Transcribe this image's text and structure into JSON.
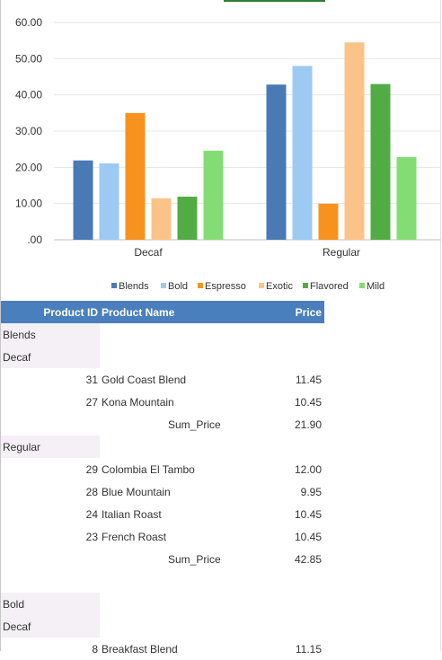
{
  "chart_data": {
    "type": "bar",
    "categories": [
      "Decaf",
      "Regular"
    ],
    "series": [
      {
        "name": "Blends",
        "color": "#4a7ab5",
        "values": [
          21.9,
          42.85
        ]
      },
      {
        "name": "Bold",
        "color": "#9ccaf2",
        "values": [
          21.1,
          48.0
        ]
      },
      {
        "name": "Espresso",
        "color": "#f7921e",
        "values": [
          35.0,
          9.95
        ]
      },
      {
        "name": "Exotic",
        "color": "#fbc387",
        "values": [
          11.45,
          54.5
        ]
      },
      {
        "name": "Flavored",
        "color": "#52ac44",
        "values": [
          11.9,
          43.0
        ]
      },
      {
        "name": "Mild",
        "color": "#84dd74",
        "values": [
          24.6,
          22.85
        ]
      }
    ],
    "yticks": [
      "60.00",
      "50.00",
      "40.00",
      "30.00",
      "20.00",
      "10.00",
      ".00"
    ],
    "ylim": [
      0,
      60
    ],
    "grid": true,
    "legend": "bottom"
  },
  "report": {
    "columns": {
      "id": "Product ID",
      "name": "Product Name",
      "price": "Price"
    },
    "sum_label": "Sum_Price",
    "groups": [
      {
        "label": "Blends"
      },
      {
        "label": "Decaf"
      },
      {
        "id": "31",
        "name": "Gold Coast Blend",
        "price": "11.45"
      },
      {
        "id": "27",
        "name": "Kona Mountain",
        "price": "10.45"
      },
      {
        "sum": "21.90"
      },
      {
        "label": "Regular"
      },
      {
        "id": "29",
        "name": "Colombia El Tambo",
        "price": "12.00"
      },
      {
        "id": "28",
        "name": "Blue Mountain",
        "price": "9.95"
      },
      {
        "id": "24",
        "name": "Italian Roast",
        "price": "10.45"
      },
      {
        "id": "23",
        "name": "French Roast",
        "price": "10.45"
      },
      {
        "sum": "42.85"
      },
      {
        "spacer": true
      },
      {
        "label": "Bold"
      },
      {
        "label": "Decaf"
      },
      {
        "id": "8",
        "name": "Breakfast Blend",
        "price": "11.15"
      }
    ]
  }
}
